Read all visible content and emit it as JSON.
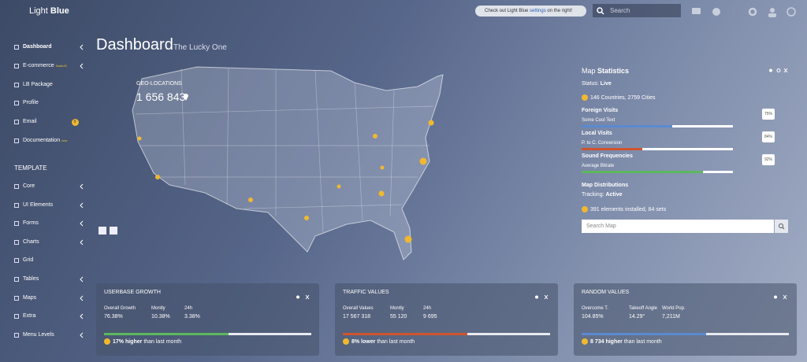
{
  "header": {
    "logo": {
      "light": "Light",
      "bold": "Blue"
    },
    "notice": {
      "text": "Check out Light Blue",
      "link": "settings",
      "tail": "on the right!"
    },
    "search_placeholder": "Search"
  },
  "sidebar": {
    "items": [
      {
        "label": "Dashboard"
      },
      {
        "label": "E-commerce",
        "badge": "NodeJS"
      },
      {
        "label": "LB Package"
      },
      {
        "label": "Profile"
      },
      {
        "label": "Email",
        "badge": "9"
      },
      {
        "label": "Documentation",
        "badge": "new"
      }
    ],
    "section": "TEMPLATE",
    "template_items": [
      "Core",
      "UI Elements",
      "Forms",
      "Charts",
      "Grid",
      "Tables",
      "Maps",
      "Extra",
      "Menu Levels"
    ]
  },
  "page": {
    "title": "Dashboard",
    "subtitle": "The Lucky One"
  },
  "map": {
    "label": "GEO-LOCATIONS",
    "count": "1 656 843"
  },
  "map_statistics": {
    "title": {
      "light": "Map",
      "bold": "Statistics"
    },
    "status": {
      "label": "Status:",
      "value": "Live"
    },
    "summary": "146 Countries, 2759 Cities",
    "metrics": [
      {
        "name": "Foreign Visits",
        "description": "Some Cool Text",
        "value": "75%"
      },
      {
        "name": "Local Visits",
        "description": "P. to C. Conversion",
        "value": "84%"
      },
      {
        "name": "Sound Frequencies",
        "description": "Average Bitrate",
        "value": "92%"
      }
    ],
    "distributions": {
      "title": "Map Distributions",
      "tracking_label": "Tracking:",
      "tracking_value": "Active",
      "summary": "391 elements installed, 84 sets"
    },
    "search_placeholder": "Search Map"
  },
  "widgets": [
    {
      "title": "USERBASE GROWTH",
      "stats": [
        {
          "label": "Overall Growth",
          "value": "76.38%"
        },
        {
          "label": "Montly",
          "value": "10.38%"
        },
        {
          "label": "24h",
          "value": "3.38%"
        }
      ],
      "footer": {
        "highlight": "17% higher",
        "text": "than last month"
      }
    },
    {
      "title": "TRAFFIC VALUES",
      "stats": [
        {
          "label": "Overall Values",
          "value": "17 567 318"
        },
        {
          "label": "Montly",
          "value": "55 120"
        },
        {
          "label": "24h",
          "value": "9 695"
        }
      ],
      "footer": {
        "highlight": "8% lower",
        "text": "than last month"
      }
    },
    {
      "title": "RANDOM VALUES",
      "stats": [
        {
          "label": "Overcome T.",
          "value": "104.85%"
        },
        {
          "label": "Takeoff Angle",
          "value": "14.29°"
        },
        {
          "label": "World Pop.",
          "value": "7,211M"
        }
      ],
      "footer": {
        "highlight": "8 734 higher",
        "text": "than last month"
      }
    }
  ]
}
